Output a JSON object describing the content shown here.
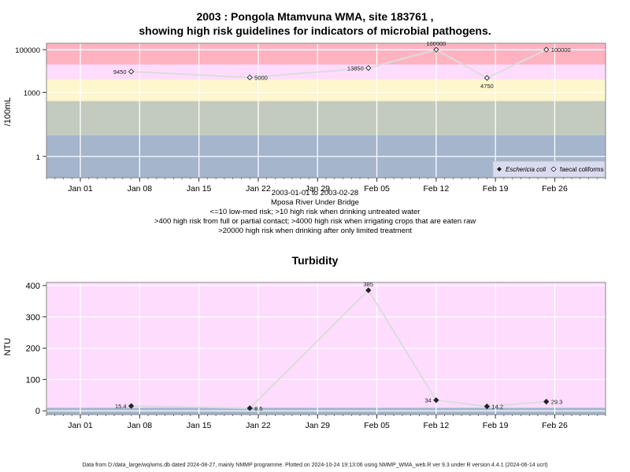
{
  "top": {
    "title_line1": "2003 : Pongola Mtamvuna WMA, site 183761 ,",
    "title_line2": "showing high risk guidelines for indicators of microbial pathogens.",
    "ylabel": "/100mL",
    "date_range": "2003-01-01 to 2003-02-28",
    "site_name": "Mposa River Under Bridge",
    "guideline_1": "<=10 low-med risk; >10 high risk when drinking untreated water",
    "guideline_2": ">400 high risk from full or partial contact; >4000 high risk when irrigating crops that are eaten raw",
    "guideline_3": ">20000 high risk when drinking after only limited treatment",
    "legend": {
      "ecoli": "Eschericia coli",
      "faecal": "faecal coliforms",
      "position": "bottom-right"
    }
  },
  "bottom": {
    "title": "Turbidity",
    "ylabel": "NTU"
  },
  "footer": "Data from D:/data_large/wq/wms.db dated 2024-08-27, mainly NMMP programme. Plotted on 2024-10-24 19:13:06 using NMMP_WMA_web.R ver 9.3 under R version 4.4.1 (2024-06-14 ucrt)",
  "colors": {
    "band_gray_blue": "#a4b5cc",
    "band_gray_green": "#c3cbbe",
    "band_yellow": "#fef6cc",
    "band_pink_light": "#fedcfe",
    "band_red": "#ffb3c1",
    "line": "#dcdcdc",
    "grid": "#ffffff"
  },
  "chart_data": [
    {
      "type": "line",
      "title": "2003 : Pongola Mtamvuna WMA, site 183761 , showing high risk guidelines for indicators of microbial pathogens.",
      "ylabel": "/100mL",
      "yscale": "log",
      "ylim": [
        0.1,
        200000
      ],
      "yticks": [
        1,
        1000,
        100000
      ],
      "xlim": [
        "2002-12-28",
        "2003-03-04"
      ],
      "xticks": [
        {
          "date": "2003-01-01",
          "label": "Jan 01"
        },
        {
          "date": "2003-01-08",
          "label": "Jan 08"
        },
        {
          "date": "2003-01-15",
          "label": "Jan 15"
        },
        {
          "date": "2003-01-22",
          "label": "Jan 22"
        },
        {
          "date": "2003-01-29",
          "label": "Jan 29"
        },
        {
          "date": "2003-02-05",
          "label": "Feb 05"
        },
        {
          "date": "2003-02-12",
          "label": "Feb 12"
        },
        {
          "date": "2003-02-19",
          "label": "Feb 19"
        },
        {
          "date": "2003-02-26",
          "label": "Feb 26"
        }
      ],
      "bands": [
        {
          "from": 0.1,
          "to": 10,
          "color": "#a4b5cc"
        },
        {
          "from": 10,
          "to": 400,
          "color": "#c3cbbe"
        },
        {
          "from": 400,
          "to": 4000,
          "color": "#fef6cc"
        },
        {
          "from": 4000,
          "to": 20000,
          "color": "#fedcfe"
        },
        {
          "from": 20000,
          "to": 200000,
          "color": "#ffb3c1"
        }
      ],
      "grid": true,
      "series": [
        {
          "name": "faecal coliforms",
          "marker": "open-diamond",
          "points": [
            {
              "x": "2003-01-07",
              "y": 9450,
              "label": "9450",
              "label_side": "left"
            },
            {
              "x": "2003-01-21",
              "y": 5000,
              "label": "5000",
              "label_side": "right"
            },
            {
              "x": "2003-02-04",
              "y": 13850,
              "label": "13850",
              "label_side": "left"
            },
            {
              "x": "2003-02-12",
              "y": 100000,
              "label": "100000",
              "label_side": "above"
            },
            {
              "x": "2003-02-18",
              "y": 4750,
              "label": "4750",
              "label_side": "below"
            },
            {
              "x": "2003-02-25",
              "y": 100000,
              "label": "100000",
              "label_side": "right"
            }
          ]
        }
      ]
    },
    {
      "type": "line",
      "title": "Turbidity",
      "ylabel": "NTU",
      "ylim": [
        -12,
        410
      ],
      "yticks": [
        0,
        100,
        200,
        300,
        400
      ],
      "xlim": [
        "2002-12-28",
        "2003-03-04"
      ],
      "xticks": [
        {
          "date": "2003-01-01",
          "label": "Jan 01"
        },
        {
          "date": "2003-01-08",
          "label": "Jan 08"
        },
        {
          "date": "2003-01-15",
          "label": "Jan 15"
        },
        {
          "date": "2003-01-22",
          "label": "Jan 22"
        },
        {
          "date": "2003-01-29",
          "label": "Jan 29"
        },
        {
          "date": "2003-02-05",
          "label": "Feb 05"
        },
        {
          "date": "2003-02-12",
          "label": "Feb 12"
        },
        {
          "date": "2003-02-19",
          "label": "Feb 19"
        },
        {
          "date": "2003-02-26",
          "label": "Feb 26"
        }
      ],
      "bands": [
        {
          "from": -12,
          "to": 10,
          "color": "#a4b5cc"
        },
        {
          "from": 10,
          "to": 410,
          "color": "#fedcfe"
        }
      ],
      "grid": true,
      "series": [
        {
          "marker": "filled-diamond",
          "points": [
            {
              "x": "2003-01-07",
              "y": 15.4,
              "label": "15.4",
              "label_side": "left"
            },
            {
              "x": "2003-01-21",
              "y": 8.5,
              "label": "8.5",
              "label_side": "right"
            },
            {
              "x": "2003-02-04",
              "y": 385,
              "label": "385",
              "label_side": "above"
            },
            {
              "x": "2003-02-12",
              "y": 34,
              "label": "34",
              "label_side": "left"
            },
            {
              "x": "2003-02-18",
              "y": 14.2,
              "label": "14.2",
              "label_side": "right"
            },
            {
              "x": "2003-02-25",
              "y": 29.3,
              "label": "29.3",
              "label_side": "right"
            }
          ]
        }
      ]
    }
  ]
}
